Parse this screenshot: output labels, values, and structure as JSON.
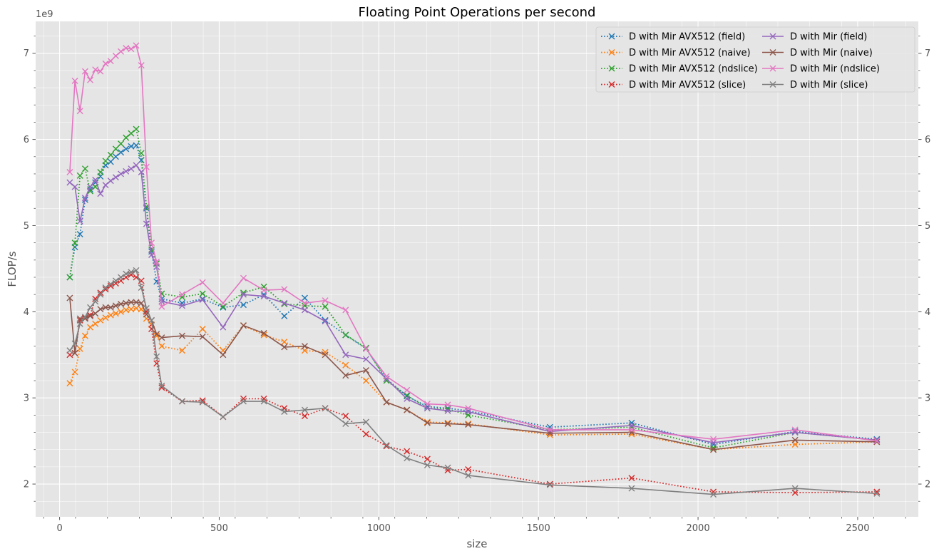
{
  "chart_data": {
    "type": "line",
    "title": "Floating Point Operations per second",
    "xlabel": "size",
    "ylabel": "FLOP/s",
    "y_offset_label": "1e9",
    "xlim": [
      -75,
      2690
    ],
    "ylim": [
      1.62,
      7.37
    ],
    "x_ticks": [
      0,
      500,
      1000,
      1500,
      2000,
      2500
    ],
    "x_tick_labels": [
      "0",
      "500",
      "1000",
      "1500",
      "2000",
      "2500"
    ],
    "y_ticks": [
      2,
      3,
      4,
      5,
      6,
      7
    ],
    "y_tick_labels": [
      "2",
      "3",
      "4",
      "5",
      "6",
      "7"
    ],
    "y_scale": 1000000000.0,
    "grid": true,
    "background": "#e5e5e5",
    "legend_position": "top-right",
    "legend_columns": 2,
    "series": [
      {
        "name": "D with Mir AVX512 (field)",
        "color": "#1f77b4",
        "linestyle": "dotted",
        "marker": "x",
        "x": [
          32,
          48,
          64,
          80,
          96,
          112,
          128,
          144,
          160,
          176,
          192,
          208,
          224,
          240,
          256,
          272,
          288,
          304,
          320,
          384,
          448,
          512,
          576,
          640,
          704,
          768,
          832,
          896,
          960,
          1024,
          1088,
          1152,
          1216,
          1280,
          1536,
          1792,
          2048,
          2304,
          2560
        ],
        "y": [
          4.4,
          4.75,
          4.9,
          5.3,
          5.42,
          5.5,
          5.57,
          5.7,
          5.74,
          5.8,
          5.85,
          5.89,
          5.92,
          5.93,
          5.76,
          5.2,
          4.7,
          4.35,
          4.15,
          4.1,
          4.15,
          4.05,
          4.08,
          4.2,
          3.95,
          4.16,
          3.9,
          3.73,
          3.57,
          3.22,
          3.02,
          2.9,
          2.88,
          2.85,
          2.66,
          2.71,
          2.46,
          2.61,
          2.52
        ]
      },
      {
        "name": "D with Mir AVX512 (naive)",
        "color": "#ff7f0e",
        "linestyle": "dotted",
        "marker": "x",
        "x": [
          32,
          48,
          64,
          80,
          96,
          112,
          128,
          144,
          160,
          176,
          192,
          208,
          224,
          240,
          256,
          272,
          288,
          304,
          320,
          384,
          448,
          512,
          576,
          640,
          704,
          768,
          832,
          896,
          960,
          1024,
          1088,
          1152,
          1216,
          1280,
          1536,
          1792,
          2048,
          2304,
          2560
        ],
        "y": [
          3.17,
          3.3,
          3.57,
          3.72,
          3.82,
          3.86,
          3.9,
          3.93,
          3.96,
          3.98,
          4.0,
          4.02,
          4.03,
          4.04,
          4.03,
          3.92,
          3.85,
          3.72,
          3.6,
          3.55,
          3.8,
          3.55,
          3.84,
          3.73,
          3.65,
          3.55,
          3.53,
          3.38,
          3.2,
          2.95,
          2.86,
          2.72,
          2.71,
          2.7,
          2.57,
          2.58,
          2.4,
          2.46,
          2.49
        ]
      },
      {
        "name": "D with Mir AVX512 (ndslice)",
        "color": "#2ca02c",
        "linestyle": "dotted",
        "marker": "x",
        "x": [
          32,
          48,
          64,
          80,
          96,
          112,
          128,
          144,
          160,
          176,
          192,
          208,
          224,
          240,
          256,
          272,
          288,
          304,
          320,
          384,
          448,
          512,
          576,
          640,
          704,
          768,
          832,
          896,
          960,
          1024,
          1088,
          1152,
          1216,
          1280,
          1536,
          1792,
          2048,
          2304,
          2560
        ],
        "y": [
          4.4,
          4.8,
          5.58,
          5.66,
          5.4,
          5.45,
          5.62,
          5.75,
          5.82,
          5.89,
          5.95,
          6.02,
          6.07,
          6.12,
          5.84,
          5.22,
          4.72,
          4.56,
          4.21,
          4.17,
          4.21,
          4.06,
          4.22,
          4.29,
          4.09,
          4.07,
          4.06,
          3.73,
          3.58,
          3.2,
          3.03,
          2.88,
          2.87,
          2.8,
          2.63,
          2.66,
          2.42,
          2.6,
          2.51
        ]
      },
      {
        "name": "D with Mir AVX512 (slice)",
        "color": "#d62728",
        "linestyle": "dotted",
        "marker": "x",
        "x": [
          32,
          48,
          64,
          80,
          96,
          112,
          128,
          144,
          160,
          176,
          192,
          208,
          224,
          240,
          256,
          272,
          288,
          304,
          320,
          384,
          448,
          512,
          576,
          640,
          704,
          768,
          832,
          896,
          960,
          1024,
          1088,
          1152,
          1216,
          1280,
          1536,
          1792,
          2048,
          2304,
          2560
        ],
        "y": [
          3.5,
          3.52,
          3.9,
          3.93,
          3.96,
          4.15,
          4.22,
          4.26,
          4.3,
          4.33,
          4.36,
          4.4,
          4.43,
          4.4,
          4.36,
          4.0,
          3.8,
          3.4,
          3.12,
          2.96,
          2.97,
          2.78,
          2.99,
          2.99,
          2.88,
          2.79,
          2.88,
          2.79,
          2.58,
          2.44,
          2.38,
          2.29,
          2.16,
          2.17,
          2.0,
          2.07,
          1.91,
          1.9,
          1.91
        ]
      },
      {
        "name": "D with Mir (field)",
        "color": "#9467bd",
        "linestyle": "solid",
        "marker": "x",
        "x": [
          32,
          48,
          64,
          80,
          96,
          112,
          128,
          144,
          160,
          176,
          192,
          208,
          224,
          240,
          256,
          272,
          288,
          304,
          320,
          384,
          448,
          512,
          576,
          640,
          704,
          768,
          832,
          896,
          960,
          1024,
          1088,
          1152,
          1216,
          1280,
          1536,
          1792,
          2048,
          2304,
          2560
        ],
        "y": [
          5.5,
          5.45,
          5.05,
          5.32,
          5.45,
          5.53,
          5.37,
          5.47,
          5.52,
          5.56,
          5.6,
          5.63,
          5.66,
          5.7,
          5.62,
          5.02,
          4.66,
          4.52,
          4.12,
          4.07,
          4.14,
          3.82,
          4.2,
          4.18,
          4.1,
          4.02,
          3.89,
          3.5,
          3.45,
          3.22,
          2.99,
          2.88,
          2.85,
          2.84,
          2.61,
          2.68,
          2.48,
          2.6,
          2.51
        ]
      },
      {
        "name": "D with Mir (naive)",
        "color": "#8c564b",
        "linestyle": "solid",
        "marker": "x",
        "x": [
          32,
          48,
          64,
          80,
          96,
          112,
          128,
          144,
          160,
          176,
          192,
          208,
          224,
          240,
          256,
          272,
          288,
          304,
          320,
          384,
          448,
          512,
          576,
          640,
          704,
          768,
          832,
          896,
          960,
          1024,
          1088,
          1152,
          1216,
          1280,
          1536,
          1792,
          2048,
          2304,
          2560
        ],
        "y": [
          4.16,
          3.52,
          3.92,
          3.92,
          3.95,
          3.98,
          4.03,
          4.05,
          4.05,
          4.07,
          4.09,
          4.1,
          4.11,
          4.11,
          4.1,
          3.97,
          3.9,
          3.74,
          3.7,
          3.72,
          3.71,
          3.5,
          3.84,
          3.75,
          3.59,
          3.6,
          3.5,
          3.26,
          3.32,
          2.95,
          2.86,
          2.71,
          2.7,
          2.69,
          2.59,
          2.6,
          2.4,
          2.51,
          2.49
        ]
      },
      {
        "name": "D with Mir (ndslice)",
        "color": "#e377c2",
        "linestyle": "solid",
        "marker": "x",
        "x": [
          32,
          48,
          64,
          80,
          96,
          112,
          128,
          144,
          160,
          176,
          192,
          208,
          224,
          240,
          256,
          272,
          288,
          304,
          320,
          384,
          448,
          512,
          576,
          640,
          704,
          768,
          832,
          896,
          960,
          1024,
          1088,
          1152,
          1216,
          1280,
          1536,
          1792,
          2048,
          2304,
          2560
        ],
        "y": [
          5.62,
          6.68,
          6.33,
          6.79,
          6.69,
          6.81,
          6.79,
          6.88,
          6.91,
          6.97,
          7.02,
          7.06,
          7.05,
          7.09,
          6.86,
          5.68,
          4.8,
          4.58,
          4.06,
          4.2,
          4.34,
          4.1,
          4.39,
          4.25,
          4.26,
          4.1,
          4.13,
          4.02,
          3.57,
          3.25,
          3.09,
          2.93,
          2.92,
          2.88,
          2.63,
          2.63,
          2.52,
          2.63,
          2.5
        ]
      },
      {
        "name": "D with Mir (slice)",
        "color": "#7f7f7f",
        "linestyle": "solid",
        "marker": "x",
        "x": [
          32,
          48,
          64,
          80,
          96,
          112,
          128,
          144,
          160,
          176,
          192,
          208,
          224,
          240,
          256,
          272,
          288,
          304,
          320,
          384,
          448,
          512,
          576,
          640,
          704,
          768,
          832,
          896,
          960,
          1024,
          1088,
          1152,
          1216,
          1280,
          1536,
          1792,
          2048,
          2304,
          2560
        ],
        "y": [
          3.55,
          3.63,
          3.86,
          3.94,
          4.05,
          4.12,
          4.2,
          4.28,
          4.32,
          4.36,
          4.4,
          4.44,
          4.46,
          4.48,
          4.28,
          4.04,
          3.9,
          3.48,
          3.14,
          2.96,
          2.95,
          2.78,
          2.96,
          2.96,
          2.84,
          2.86,
          2.88,
          2.7,
          2.72,
          2.45,
          2.3,
          2.22,
          2.19,
          2.1,
          1.99,
          1.95,
          1.88,
          1.95,
          1.89
        ]
      }
    ]
  }
}
